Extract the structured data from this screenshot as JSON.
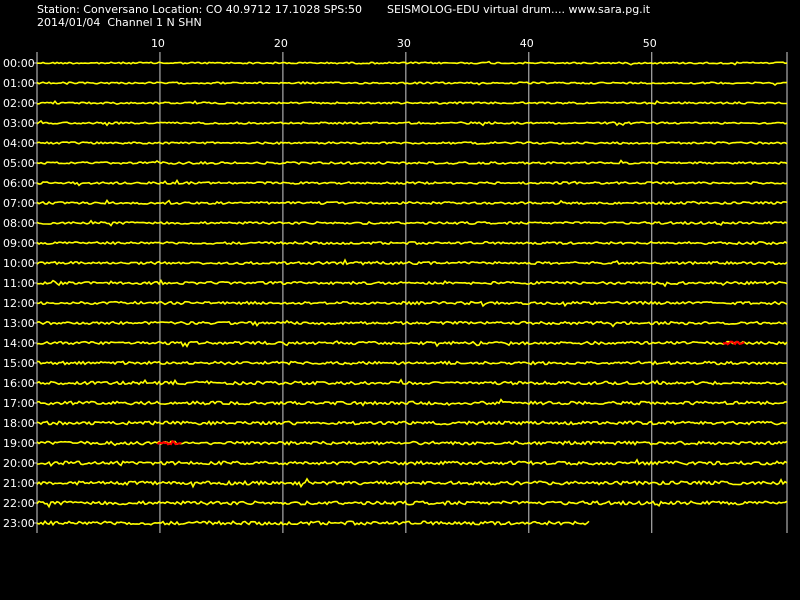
{
  "header": {
    "station_line": "Station: Conversano Location: CO 40.9712 17.1028 SPS:50",
    "brand_line": "SEISMOLOG-EDU virtual drum.... www.sara.pg.it",
    "date_line": "2014/01/04  Channel 1 N SHN"
  },
  "drum": {
    "minute_ticks": [
      "10",
      "20",
      "30",
      "40",
      "50"
    ],
    "minute_range": [
      0,
      61
    ],
    "hours": [
      "00:00",
      "01:00",
      "02:00",
      "03:00",
      "04:00",
      "05:00",
      "06:00",
      "07:00",
      "08:00",
      "09:00",
      "10:00",
      "11:00",
      "12:00",
      "13:00",
      "14:00",
      "15:00",
      "16:00",
      "17:00",
      "18:00",
      "19:00",
      "20:00",
      "21:00",
      "22:00",
      "23:00"
    ],
    "last_row_end_minute": 45,
    "events": [
      {
        "hour": "14:00",
        "start_minute": 55.8,
        "end_minute": 57.6
      },
      {
        "hour": "19:00",
        "start_minute": 9.8,
        "end_minute": 11.8
      }
    ],
    "colors": {
      "background": "#000000",
      "trace": "#ffff00",
      "event": "#ff0000",
      "grid": "#cfcfcf",
      "text": "#ffffff"
    }
  }
}
